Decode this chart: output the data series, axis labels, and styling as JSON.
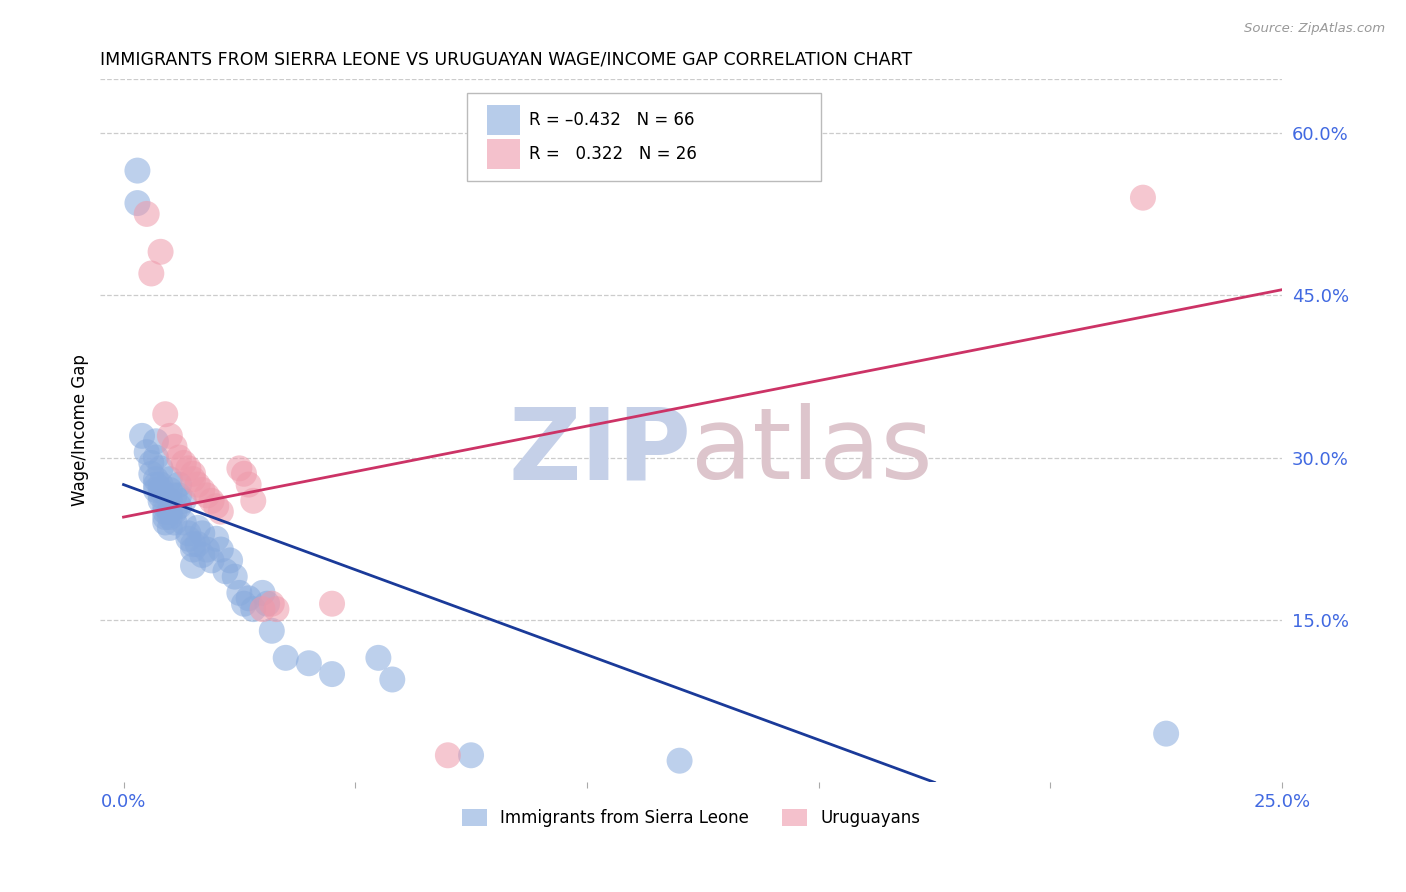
{
  "title": "IMMIGRANTS FROM SIERRA LEONE VS URUGUAYAN WAGE/INCOME GAP CORRELATION CHART",
  "source": "Source: ZipAtlas.com",
  "tick_color": "#4169e1",
  "ylabel": "Wage/Income Gap",
  "xlim": [
    -0.5,
    25.0
  ],
  "ylim": [
    0.0,
    65.0
  ],
  "xticks": [
    0.0,
    5.0,
    10.0,
    15.0,
    20.0,
    25.0
  ],
  "xtick_labels": [
    "0.0%",
    "",
    "",
    "",
    "",
    "25.0%"
  ],
  "yticks_right": [
    60.0,
    45.0,
    30.0,
    15.0
  ],
  "ytick_labels_right": [
    "60.0%",
    "45.0%",
    "30.0%",
    "15.0%"
  ],
  "legend_label1": "Immigrants from Sierra Leone",
  "legend_label2": "Uruguayans",
  "blue_color": "#88aadd",
  "pink_color": "#ee99aa",
  "blue_line_color": "#1a3a99",
  "pink_line_color": "#cc3366",
  "watermark_zip_color": "#c5d0e8",
  "watermark_atlas_color": "#ddc5cc",
  "blue_scatter": [
    [
      0.3,
      56.5
    ],
    [
      0.3,
      53.5
    ],
    [
      0.4,
      32.0
    ],
    [
      0.5,
      30.5
    ],
    [
      0.6,
      29.5
    ],
    [
      0.6,
      28.5
    ],
    [
      0.7,
      31.5
    ],
    [
      0.7,
      30.0
    ],
    [
      0.7,
      28.0
    ],
    [
      0.7,
      27.5
    ],
    [
      0.7,
      27.0
    ],
    [
      0.8,
      29.0
    ],
    [
      0.8,
      27.5
    ],
    [
      0.8,
      27.0
    ],
    [
      0.8,
      26.5
    ],
    [
      0.8,
      26.0
    ],
    [
      0.9,
      25.5
    ],
    [
      0.9,
      25.0
    ],
    [
      0.9,
      24.5
    ],
    [
      0.9,
      24.0
    ],
    [
      1.0,
      28.0
    ],
    [
      1.0,
      27.0
    ],
    [
      1.0,
      26.0
    ],
    [
      1.0,
      25.0
    ],
    [
      1.0,
      24.5
    ],
    [
      1.0,
      23.5
    ],
    [
      1.1,
      26.5
    ],
    [
      1.1,
      25.0
    ],
    [
      1.1,
      24.0
    ],
    [
      1.2,
      27.5
    ],
    [
      1.2,
      26.5
    ],
    [
      1.2,
      25.5
    ],
    [
      1.3,
      26.0
    ],
    [
      1.3,
      24.0
    ],
    [
      1.4,
      23.0
    ],
    [
      1.4,
      22.5
    ],
    [
      1.5,
      22.0
    ],
    [
      1.5,
      21.5
    ],
    [
      1.5,
      20.0
    ],
    [
      1.6,
      23.5
    ],
    [
      1.6,
      22.0
    ],
    [
      1.7,
      23.0
    ],
    [
      1.7,
      21.0
    ],
    [
      1.8,
      21.5
    ],
    [
      1.9,
      20.5
    ],
    [
      2.0,
      22.5
    ],
    [
      2.1,
      21.5
    ],
    [
      2.2,
      19.5
    ],
    [
      2.3,
      20.5
    ],
    [
      2.4,
      19.0
    ],
    [
      2.5,
      17.5
    ],
    [
      2.6,
      16.5
    ],
    [
      2.7,
      17.0
    ],
    [
      2.8,
      16.0
    ],
    [
      3.0,
      17.5
    ],
    [
      3.1,
      16.5
    ],
    [
      3.2,
      14.0
    ],
    [
      3.5,
      11.5
    ],
    [
      4.0,
      11.0
    ],
    [
      4.5,
      10.0
    ],
    [
      5.5,
      11.5
    ],
    [
      5.8,
      9.5
    ],
    [
      7.5,
      2.5
    ],
    [
      12.0,
      2.0
    ],
    [
      22.5,
      4.5
    ]
  ],
  "pink_scatter": [
    [
      0.5,
      52.5
    ],
    [
      0.6,
      47.0
    ],
    [
      0.8,
      49.0
    ],
    [
      0.9,
      34.0
    ],
    [
      1.0,
      32.0
    ],
    [
      1.1,
      31.0
    ],
    [
      1.2,
      30.0
    ],
    [
      1.3,
      29.5
    ],
    [
      1.4,
      29.0
    ],
    [
      1.5,
      28.5
    ],
    [
      1.5,
      28.0
    ],
    [
      1.6,
      27.5
    ],
    [
      1.7,
      27.0
    ],
    [
      1.8,
      26.5
    ],
    [
      1.9,
      26.0
    ],
    [
      2.0,
      25.5
    ],
    [
      2.1,
      25.0
    ],
    [
      2.5,
      29.0
    ],
    [
      2.6,
      28.5
    ],
    [
      2.7,
      27.5
    ],
    [
      2.8,
      26.0
    ],
    [
      3.0,
      16.0
    ],
    [
      3.2,
      16.5
    ],
    [
      3.3,
      16.0
    ],
    [
      4.5,
      16.5
    ],
    [
      7.0,
      2.5
    ],
    [
      22.0,
      54.0
    ]
  ],
  "blue_line": {
    "x0": 0.0,
    "y0": 27.5,
    "x1": 17.5,
    "y1": 0.0
  },
  "pink_line": {
    "x0": 0.0,
    "y0": 24.5,
    "x1": 25.0,
    "y1": 45.5
  }
}
